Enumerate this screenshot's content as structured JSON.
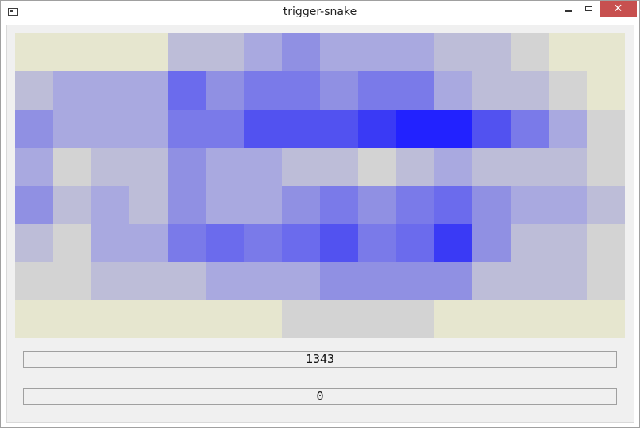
{
  "window": {
    "title": "trigger-snake",
    "close_glyph": "✕"
  },
  "palette": {
    "0": "#e6e6cf",
    "1": "#bdbdd8",
    "2": "#a9a9e0",
    "3": "#9090e3",
    "4": "#7a7ae9",
    "5": "#6b6bed",
    "6": "#5252f0",
    "7": "#3a3af5",
    "8": "#2222ff",
    "9": "#d3d3d3"
  },
  "grid": [
    [
      0,
      0,
      0,
      0,
      1,
      1,
      2,
      3,
      2,
      2,
      2,
      1,
      1,
      9,
      0,
      0
    ],
    [
      1,
      2,
      2,
      2,
      5,
      3,
      4,
      4,
      3,
      4,
      4,
      2,
      1,
      1,
      9,
      0
    ],
    [
      3,
      2,
      2,
      2,
      4,
      4,
      6,
      6,
      6,
      7,
      8,
      8,
      6,
      4,
      2,
      9
    ],
    [
      2,
      9,
      1,
      1,
      3,
      2,
      2,
      1,
      1,
      9,
      1,
      2,
      1,
      1,
      1,
      9
    ],
    [
      3,
      1,
      2,
      1,
      3,
      2,
      2,
      3,
      4,
      3,
      4,
      5,
      3,
      2,
      2,
      1
    ],
    [
      1,
      9,
      2,
      2,
      4,
      5,
      4,
      5,
      6,
      4,
      5,
      7,
      3,
      1,
      1,
      9
    ],
    [
      9,
      9,
      1,
      1,
      1,
      2,
      2,
      2,
      3,
      3,
      3,
      3,
      1,
      1,
      1,
      9
    ],
    [
      0,
      0,
      0,
      0,
      0,
      0,
      0,
      9,
      9,
      9,
      9,
      0,
      0,
      0,
      0,
      0
    ]
  ],
  "displays": {
    "lcd1": "1343",
    "lcd2": "0"
  }
}
